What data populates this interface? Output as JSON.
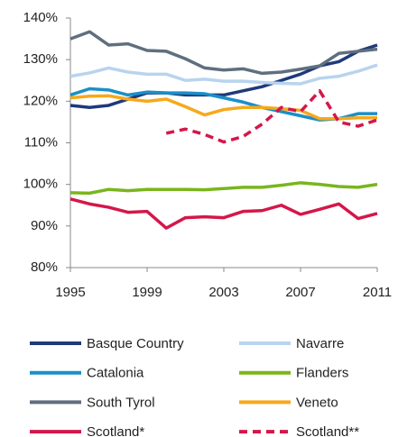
{
  "chart_data": {
    "type": "line",
    "x": [
      1995,
      1996,
      1997,
      1998,
      1999,
      2000,
      2001,
      2002,
      2003,
      2004,
      2005,
      2006,
      2007,
      2008,
      2009,
      2010,
      2011
    ],
    "xlim": [
      1995,
      2011
    ],
    "xticks": [
      1995,
      1999,
      2003,
      2007,
      2011
    ],
    "ylim": [
      80,
      140
    ],
    "yticks": [
      {
        "value": 80,
        "label": "80%"
      },
      {
        "value": 90,
        "label": "90%"
      },
      {
        "value": 100,
        "label": "100%"
      },
      {
        "value": 110,
        "label": "110%"
      },
      {
        "value": 120,
        "label": "120%"
      },
      {
        "value": 130,
        "label": "130%"
      },
      {
        "value": 140,
        "label": "140%"
      }
    ],
    "grid": false,
    "series": [
      {
        "name": "Basque Country",
        "color": "#1f3a7a",
        "values": [
          119,
          118.5,
          119,
          120.5,
          122,
          122,
          121.5,
          121.5,
          121.5,
          122.5,
          123.5,
          125,
          126.5,
          128.5,
          129.5,
          132,
          133.5
        ]
      },
      {
        "name": "Navarre",
        "color": "#b8d4ee",
        "values": [
          126,
          126.8,
          128,
          127,
          126.5,
          126.5,
          125,
          125.3,
          124.8,
          124.8,
          124.5,
          124.3,
          124.2,
          125.5,
          126,
          127.2,
          128.7
        ]
      },
      {
        "name": "Catalonia",
        "color": "#1a8fc8",
        "values": [
          121.5,
          123,
          122.7,
          121.5,
          122.2,
          122,
          122,
          121.8,
          120.8,
          119.8,
          118.5,
          117.5,
          116.5,
          115.5,
          115.8,
          117,
          117
        ]
      },
      {
        "name": "Flanders",
        "color": "#7ab51d",
        "values": [
          98,
          97.9,
          98.8,
          98.5,
          98.8,
          98.8,
          98.8,
          98.7,
          99,
          99.3,
          99.3,
          99.8,
          100.4,
          100,
          99.5,
          99.3,
          100
        ]
      },
      {
        "name": "South Tyrol",
        "color": "#5f6f7f",
        "values": [
          135,
          136.7,
          133.5,
          133.8,
          132.2,
          132,
          130.2,
          128,
          127.5,
          127.8,
          126.7,
          127,
          127.7,
          128.5,
          131.5,
          132,
          132.5
        ]
      },
      {
        "name": "Veneto",
        "color": "#f7a81b",
        "values": [
          120.8,
          121.2,
          121.3,
          120.5,
          120,
          120.5,
          118.7,
          116.7,
          118,
          118.5,
          118.5,
          118.2,
          117.8,
          115.8,
          115.8,
          116,
          116
        ]
      },
      {
        "name": "Scotland*",
        "color": "#d4174a",
        "values": [
          96.5,
          95.3,
          94.5,
          93.3,
          93.5,
          89.5,
          92,
          92.2,
          92,
          93.5,
          93.7,
          95,
          92.8,
          94,
          95.3,
          91.8,
          93
        ]
      },
      {
        "name": "Scotland**",
        "color": "#d4174a",
        "dashed": true,
        "values": [
          null,
          null,
          null,
          null,
          null,
          112.3,
          113.3,
          112,
          110.2,
          111.5,
          114.5,
          118.5,
          117.5,
          122.5,
          115,
          114,
          115.5
        ]
      }
    ]
  }
}
